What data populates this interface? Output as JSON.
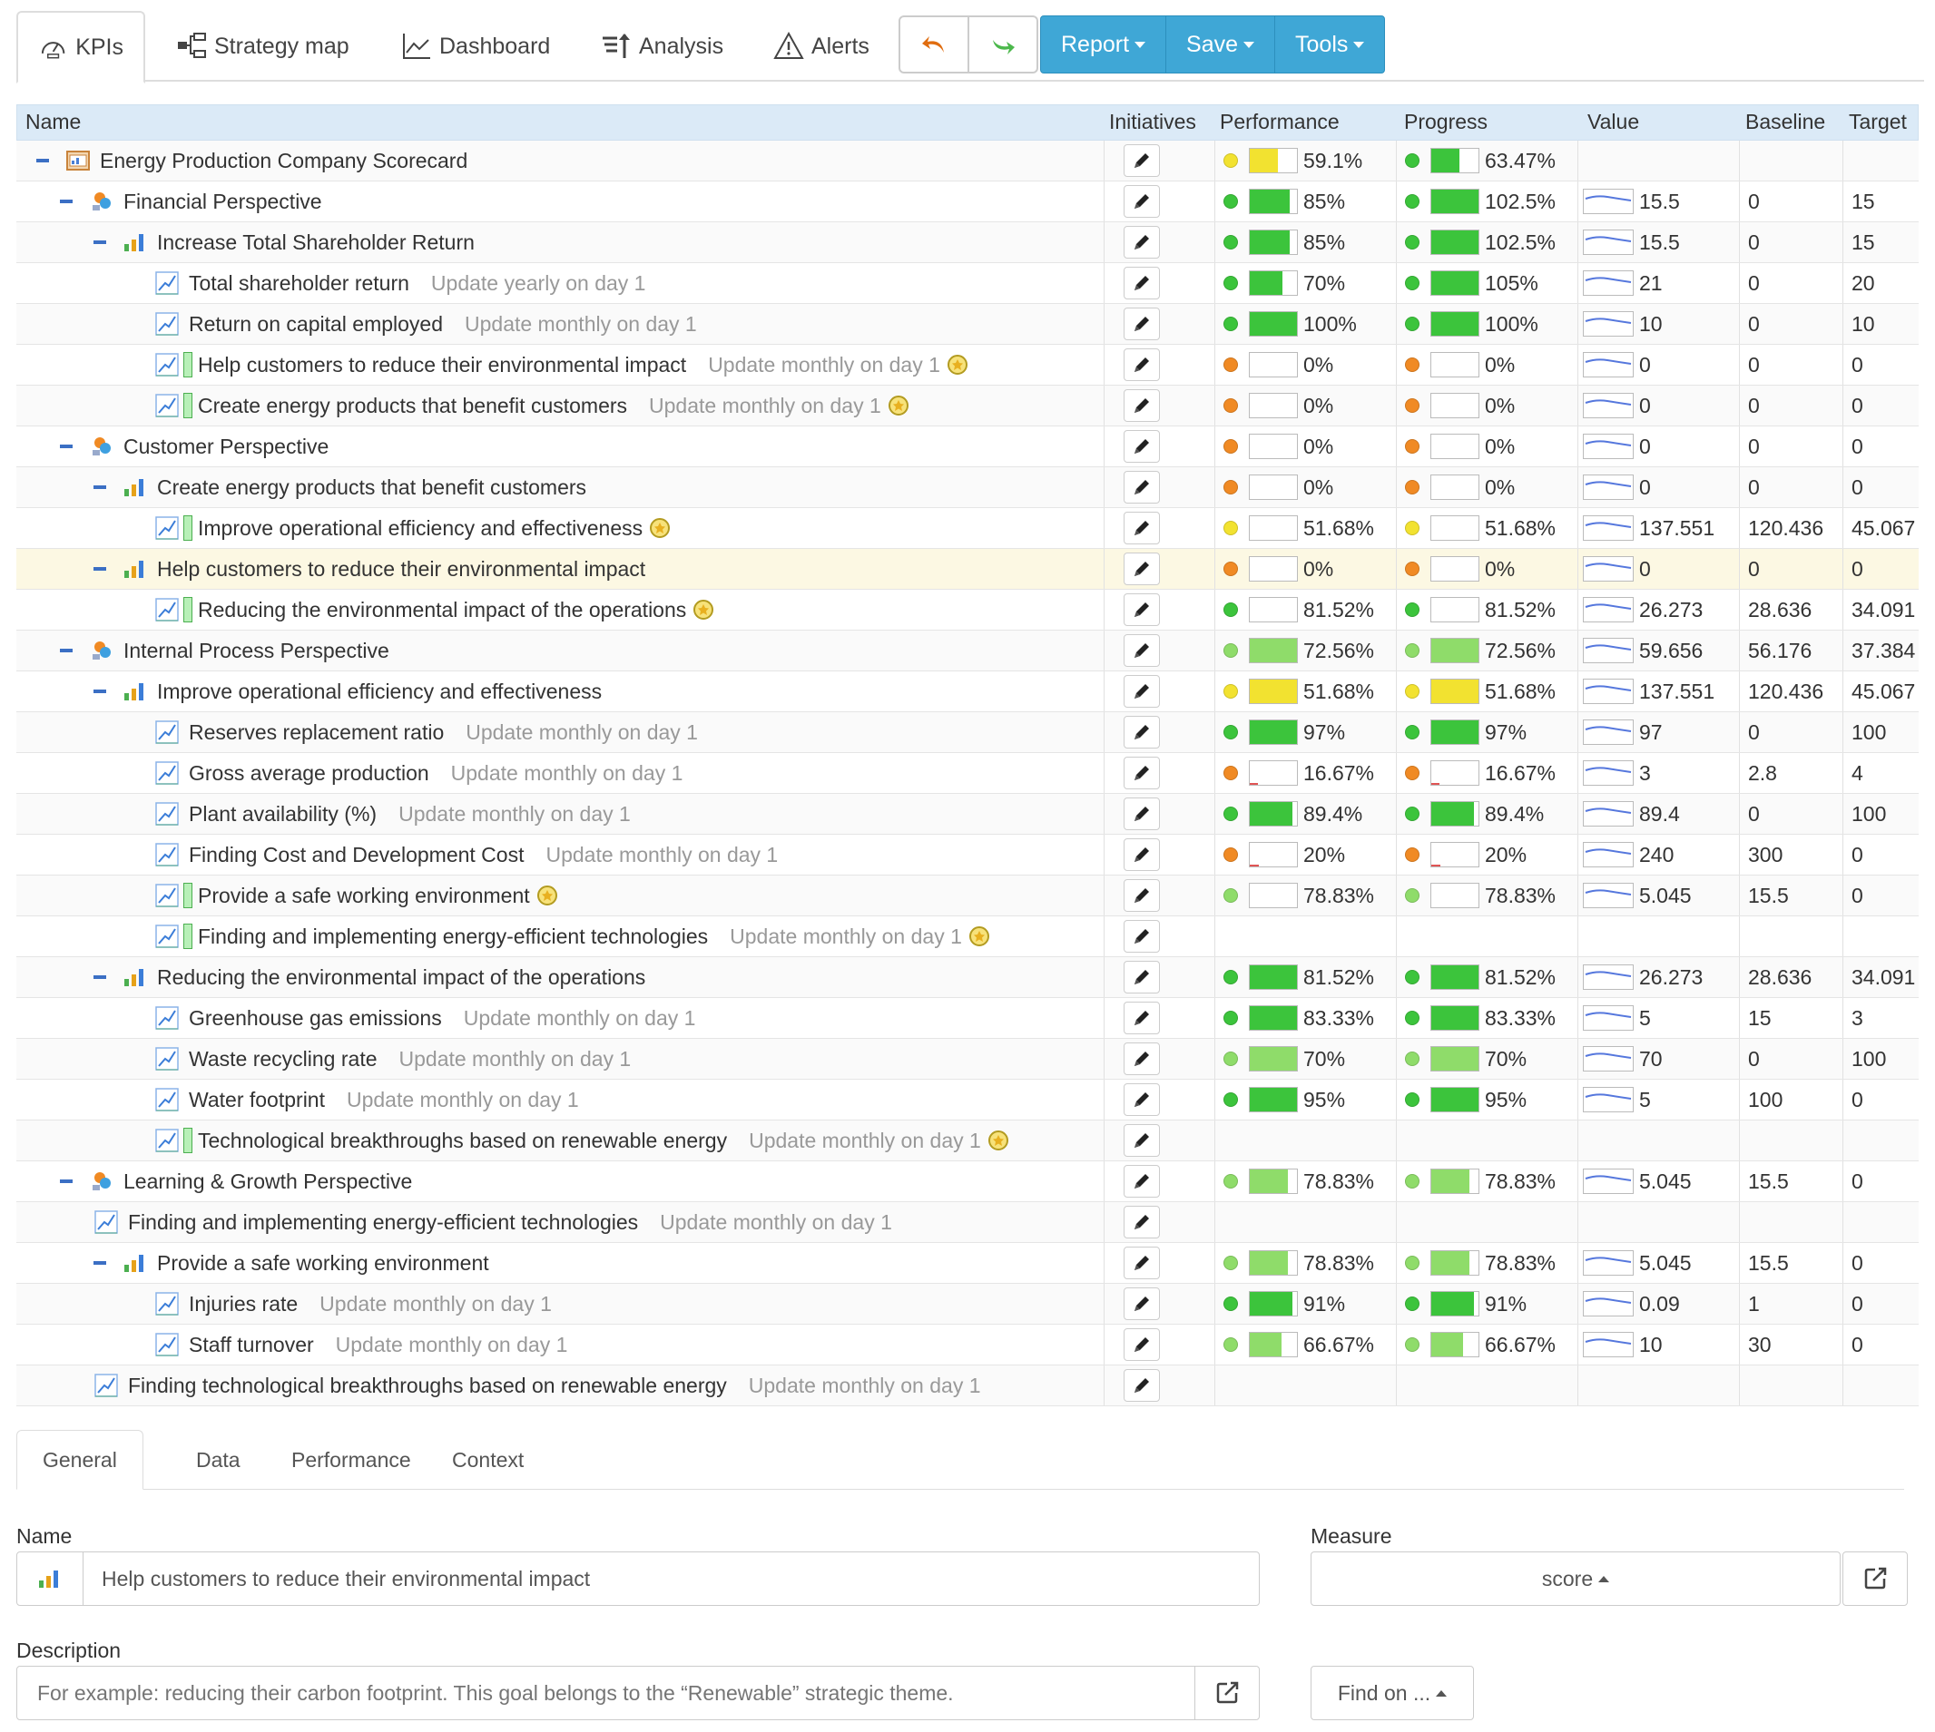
{
  "toolbar": {
    "tabs": [
      {
        "label": "KPIs",
        "icon": "dashboard-gauge-icon"
      },
      {
        "label": "Strategy map",
        "icon": "strategy-map-icon"
      },
      {
        "label": "Dashboard",
        "icon": "line-chart-icon"
      },
      {
        "label": "Analysis",
        "icon": "analysis-sort-icon"
      },
      {
        "label": "Alerts",
        "icon": "warning-icon"
      }
    ],
    "undo_icon": "undo-icon",
    "redo_icon": "redo-icon",
    "buttons": [
      {
        "label": "Report"
      },
      {
        "label": "Save"
      },
      {
        "label": "Tools"
      }
    ],
    "accent_color": "#3fa7d6"
  },
  "grid": {
    "headers": {
      "name": "Name",
      "initiatives": "Initiatives",
      "performance": "Performance",
      "progress": "Progress",
      "value": "Value",
      "baseline": "Baseline",
      "target": "Target"
    },
    "rows": [
      {
        "level": 0,
        "type": "scorecard",
        "expand": true,
        "name": "Energy Production Company Scorecard",
        "update": "",
        "perf": "59.1%",
        "perf_status": "yellow",
        "perf_fill": 0.6,
        "prog": "63.47%",
        "prog_status": "green",
        "prog_fill": 0.6,
        "value": "",
        "baseline": "",
        "target": ""
      },
      {
        "level": 1,
        "type": "perspective",
        "expand": true,
        "name": "Financial Perspective",
        "update": "",
        "perf": "85%",
        "perf_status": "green",
        "perf_fill": 0.85,
        "prog": "102.5%",
        "prog_status": "green",
        "prog_fill": 1,
        "value": "15.5",
        "baseline": "0",
        "target": "15"
      },
      {
        "level": 2,
        "type": "goal",
        "expand": true,
        "name": "Increase Total Shareholder Return",
        "update": "",
        "perf": "85%",
        "perf_status": "green",
        "perf_fill": 0.85,
        "prog": "102.5%",
        "prog_status": "green",
        "prog_fill": 1,
        "value": "15.5",
        "baseline": "0",
        "target": "15"
      },
      {
        "level": 3,
        "type": "kpi",
        "name": "Total shareholder return",
        "update": "Update yearly on day 1",
        "perf": "70%",
        "perf_status": "green",
        "perf_fill": 0.7,
        "prog": "105%",
        "prog_status": "green",
        "prog_fill": 1,
        "value": "21",
        "baseline": "0",
        "target": "20"
      },
      {
        "level": 3,
        "type": "kpi",
        "name": "Return on capital employed",
        "update": "Update monthly on day 1",
        "perf": "100%",
        "perf_status": "green",
        "perf_fill": 1,
        "prog": "100%",
        "prog_status": "green",
        "prog_fill": 1,
        "value": "10",
        "baseline": "0",
        "target": "10"
      },
      {
        "level": 3,
        "type": "kpi-linked",
        "name": "Help customers to reduce their environmental impact",
        "update": "Update monthly on day 1",
        "medal": true,
        "perf": "0%",
        "perf_status": "orange",
        "perf_fill": 0,
        "prog": "0%",
        "prog_status": "orange",
        "prog_fill": 0,
        "value": "0",
        "baseline": "0",
        "target": "0"
      },
      {
        "level": 3,
        "type": "kpi-linked",
        "name": "Create energy products that benefit customers",
        "update": "Update monthly on day 1",
        "medal": true,
        "perf": "0%",
        "perf_status": "orange",
        "perf_fill": 0,
        "prog": "0%",
        "prog_status": "orange",
        "prog_fill": 0,
        "value": "0",
        "baseline": "0",
        "target": "0"
      },
      {
        "level": 1,
        "type": "perspective",
        "expand": true,
        "name": "Customer Perspective",
        "update": "",
        "perf": "0%",
        "perf_status": "orange",
        "perf_fill": 0,
        "prog": "0%",
        "prog_status": "orange",
        "prog_fill": 0,
        "value": "0",
        "baseline": "0",
        "target": "0"
      },
      {
        "level": 2,
        "type": "goal",
        "expand": true,
        "name": "Create energy products that benefit customers",
        "update": "",
        "perf": "0%",
        "perf_status": "orange",
        "perf_fill": 0,
        "prog": "0%",
        "prog_status": "orange",
        "prog_fill": 0,
        "value": "0",
        "baseline": "0",
        "target": "0"
      },
      {
        "level": 3,
        "type": "kpi-linked",
        "name": "Improve operational efficiency and effectiveness",
        "update": "",
        "medal": true,
        "perf": "51.68%",
        "perf_status": "yellow",
        "perf_fill": 0,
        "prog": "51.68%",
        "prog_status": "yellow",
        "prog_fill": 0,
        "value": "137.551",
        "baseline": "120.436",
        "target": "45.067"
      },
      {
        "level": 2,
        "type": "goal",
        "expand": true,
        "selected": true,
        "name": "Help customers to reduce their environmental impact",
        "update": "",
        "perf": "0%",
        "perf_status": "orange",
        "perf_fill": 0,
        "prog": "0%",
        "prog_status": "orange",
        "prog_fill": 0,
        "value": "0",
        "baseline": "0",
        "target": "0"
      },
      {
        "level": 3,
        "type": "kpi-linked",
        "name": "Reducing the environmental impact of the operations",
        "update": "",
        "medal": true,
        "perf": "81.52%",
        "perf_status": "green",
        "perf_fill": 0,
        "prog": "81.52%",
        "prog_status": "green",
        "prog_fill": 0,
        "value": "26.273",
        "baseline": "28.636",
        "target": "34.091"
      },
      {
        "level": 1,
        "type": "perspective",
        "expand": true,
        "name": "Internal Process Perspective",
        "update": "",
        "perf": "72.56%",
        "perf_status": "lightgreen",
        "perf_fill": 1,
        "prog": "72.56%",
        "prog_status": "lightgreen",
        "prog_fill": 1,
        "value": "59.656",
        "baseline": "56.176",
        "target": "37.384"
      },
      {
        "level": 2,
        "type": "goal",
        "expand": true,
        "name": "Improve operational efficiency and effectiveness",
        "update": "",
        "perf": "51.68%",
        "perf_status": "yellow",
        "perf_fill": 1,
        "prog": "51.68%",
        "prog_status": "yellow",
        "prog_fill": 1,
        "value": "137.551",
        "baseline": "120.436",
        "target": "45.067"
      },
      {
        "level": 3,
        "type": "kpi",
        "name": "Reserves replacement ratio",
        "update": "Update monthly on day 1",
        "perf": "97%",
        "perf_status": "green",
        "perf_fill": 1,
        "prog": "97%",
        "prog_status": "green",
        "prog_fill": 1,
        "value": "97",
        "baseline": "0",
        "target": "100"
      },
      {
        "level": 3,
        "type": "kpi",
        "name": "Gross average production",
        "update": "Update monthly on day 1",
        "perf": "16.67%",
        "perf_status": "orange",
        "perf_fill": 0.17,
        "prog": "16.67%",
        "prog_status": "orange",
        "prog_fill": 0.17,
        "value": "3",
        "baseline": "2.8",
        "target": "4"
      },
      {
        "level": 3,
        "type": "kpi",
        "name": "Plant availability (%)",
        "update": "Update monthly on day 1",
        "perf": "89.4%",
        "perf_status": "green",
        "perf_fill": 0.9,
        "prog": "89.4%",
        "prog_status": "green",
        "prog_fill": 0.9,
        "value": "89.4",
        "baseline": "0",
        "target": "100"
      },
      {
        "level": 3,
        "type": "kpi",
        "name": "Finding Cost and Development Cost",
        "update": "Update monthly on day 1",
        "perf": "20%",
        "perf_status": "orange",
        "perf_fill": 0.2,
        "prog": "20%",
        "prog_status": "orange",
        "prog_fill": 0.2,
        "value": "240",
        "baseline": "300",
        "target": "0"
      },
      {
        "level": 3,
        "type": "kpi-linked",
        "name": "Provide a safe working environment",
        "update": "",
        "medal": true,
        "perf": "78.83%",
        "perf_status": "lightgreen",
        "perf_fill": 0,
        "prog": "78.83%",
        "prog_status": "lightgreen",
        "prog_fill": 0,
        "value": "5.045",
        "baseline": "15.5",
        "target": "0"
      },
      {
        "level": 3,
        "type": "kpi-linked",
        "name": "Finding and implementing energy-efficient technologies",
        "update": "Update monthly on day 1",
        "medal": true,
        "perf": "",
        "perf_status": "",
        "perf_fill": 0,
        "prog": "",
        "prog_status": "",
        "prog_fill": 0,
        "value": "",
        "baseline": "",
        "target": ""
      },
      {
        "level": 2,
        "type": "goal",
        "expand": true,
        "name": "Reducing the environmental impact of the operations",
        "update": "",
        "perf": "81.52%",
        "perf_status": "green",
        "perf_fill": 1,
        "prog": "81.52%",
        "prog_status": "green",
        "prog_fill": 1,
        "value": "26.273",
        "baseline": "28.636",
        "target": "34.091"
      },
      {
        "level": 3,
        "type": "kpi",
        "name": "Greenhouse gas emissions",
        "update": "Update monthly on day 1",
        "perf": "83.33%",
        "perf_status": "green",
        "perf_fill": 1,
        "prog": "83.33%",
        "prog_status": "green",
        "prog_fill": 1,
        "value": "5",
        "baseline": "15",
        "target": "3"
      },
      {
        "level": 3,
        "type": "kpi",
        "name": "Waste recycling rate",
        "update": "Update monthly on day 1",
        "perf": "70%",
        "perf_status": "lightgreen",
        "perf_fill": 1,
        "prog": "70%",
        "prog_status": "lightgreen",
        "prog_fill": 1,
        "value": "70",
        "baseline": "0",
        "target": "100"
      },
      {
        "level": 3,
        "type": "kpi",
        "name": "Water footprint",
        "update": "Update monthly on day 1",
        "perf": "95%",
        "perf_status": "green",
        "perf_fill": 1,
        "prog": "95%",
        "prog_status": "green",
        "prog_fill": 1,
        "value": "5",
        "baseline": "100",
        "target": "0"
      },
      {
        "level": 3,
        "type": "kpi-linked",
        "name": "Technological breakthroughs based on renewable energy",
        "update": "Update monthly on day 1",
        "medal": true,
        "perf": "",
        "perf_status": "",
        "perf_fill": 0,
        "prog": "",
        "prog_status": "",
        "prog_fill": 0,
        "value": "",
        "baseline": "",
        "target": ""
      },
      {
        "level": 1,
        "type": "perspective",
        "expand": true,
        "name": "Learning & Growth Perspective",
        "update": "",
        "perf": "78.83%",
        "perf_status": "lightgreen",
        "perf_fill": 0.8,
        "prog": "78.83%",
        "prog_status": "lightgreen",
        "prog_fill": 0.8,
        "value": "5.045",
        "baseline": "15.5",
        "target": "0"
      },
      {
        "level": 2,
        "type": "kpi",
        "expand": false,
        "name": "Finding and implementing energy-efficient technologies",
        "update": "Update monthly on day 1",
        "perf": "",
        "perf_status": "",
        "perf_fill": 0,
        "prog": "",
        "prog_status": "",
        "prog_fill": 0,
        "value": "",
        "baseline": "",
        "target": ""
      },
      {
        "level": 2,
        "type": "goal",
        "expand": true,
        "name": "Provide a safe working environment",
        "update": "",
        "perf": "78.83%",
        "perf_status": "lightgreen",
        "perf_fill": 0.8,
        "prog": "78.83%",
        "prog_status": "lightgreen",
        "prog_fill": 0.8,
        "value": "5.045",
        "baseline": "15.5",
        "target": "0"
      },
      {
        "level": 3,
        "type": "kpi",
        "name": "Injuries rate",
        "update": "Update monthly on day 1",
        "perf": "91%",
        "perf_status": "green",
        "perf_fill": 0.9,
        "prog": "91%",
        "prog_status": "green",
        "prog_fill": 0.9,
        "value": "0.09",
        "baseline": "1",
        "target": "0"
      },
      {
        "level": 3,
        "type": "kpi",
        "name": "Staff turnover",
        "update": "Update monthly on day 1",
        "perf": "66.67%",
        "perf_status": "lightgreen",
        "perf_fill": 0.67,
        "prog": "66.67%",
        "prog_status": "lightgreen",
        "prog_fill": 0.67,
        "value": "10",
        "baseline": "30",
        "target": "0"
      },
      {
        "level": 2,
        "type": "kpi",
        "expand": false,
        "name": "Finding technological breakthroughs based on renewable energy",
        "update": "Update monthly on day 1",
        "perf": "",
        "perf_status": "",
        "perf_fill": 0,
        "prog": "",
        "prog_status": "",
        "prog_fill": 0,
        "value": "",
        "baseline": "",
        "target": ""
      }
    ]
  },
  "details": {
    "tabs": [
      {
        "label": "General"
      },
      {
        "label": "Data"
      },
      {
        "label": "Performance"
      },
      {
        "label": "Context"
      }
    ],
    "name_label": "Name",
    "name_value": "Help customers to reduce their environmental impact",
    "measure_label": "Measure",
    "measure_value": "score",
    "description_label": "Description",
    "description_placeholder": "For example: reducing their carbon footprint. This goal belongs to the “Renewable” strategic theme.",
    "find_on_label": "Find on ..."
  },
  "colors": {
    "header_bg": "#dbeaf7",
    "selected_row": "#fcf8e3",
    "status_green": "#3cc43c",
    "status_lightgreen": "#8fdc6a",
    "status_yellow": "#f2e230",
    "status_orange": "#f08a24"
  }
}
